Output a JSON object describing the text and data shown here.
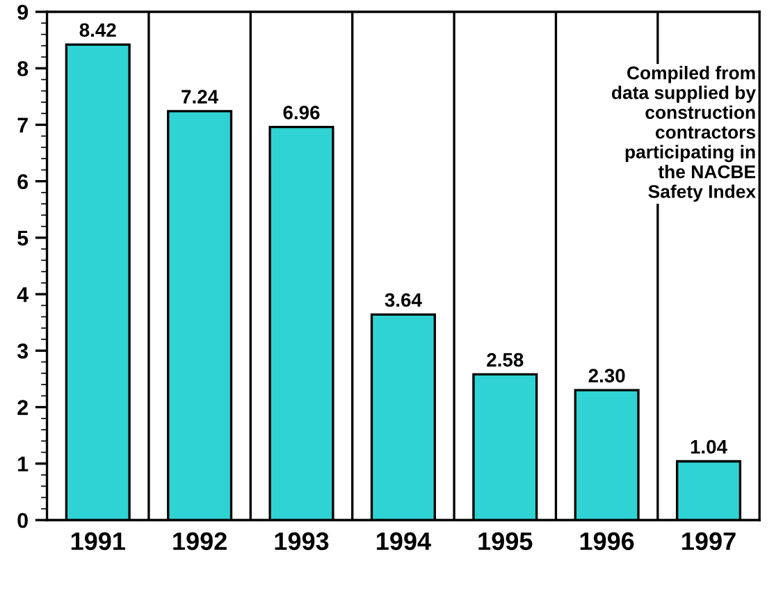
{
  "chart_data": {
    "type": "bar",
    "categories": [
      "1991",
      "1992",
      "1993",
      "1994",
      "1995",
      "1996",
      "1997"
    ],
    "values": [
      8.42,
      7.24,
      6.96,
      3.64,
      2.58,
      2.3,
      1.04
    ],
    "value_labels": [
      "8.42",
      "7.24",
      "6.96",
      "3.64",
      "2.58",
      "2.30",
      "1.04"
    ],
    "color": "#2fd3d3",
    "ylim": [
      0,
      9
    ],
    "yticks": [
      0,
      1,
      2,
      3,
      4,
      5,
      6,
      7,
      8,
      9
    ],
    "grid": "x",
    "annotations": [
      "Compiled from\ndata supplied by\nconstruction\ncontractors\nparticipating in\nthe NACBE\nSafety Index"
    ]
  }
}
